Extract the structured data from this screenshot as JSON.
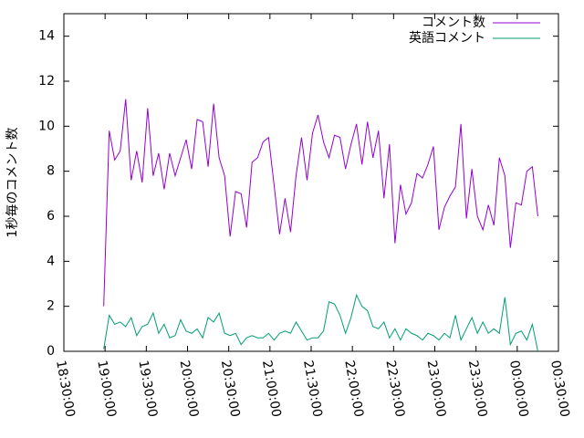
{
  "chart_data": {
    "type": "line",
    "y_label": "1秒毎のコメント数",
    "x": [
      "18:59:00",
      "19:03:00",
      "19:07:00",
      "19:11:00",
      "19:15:00",
      "19:19:00",
      "19:23:00",
      "19:27:00",
      "19:31:00",
      "19:35:00",
      "19:39:00",
      "19:43:00",
      "19:47:00",
      "19:51:00",
      "19:55:00",
      "19:59:00",
      "20:03:00",
      "20:07:00",
      "20:11:00",
      "20:15:00",
      "20:19:00",
      "20:23:00",
      "20:27:00",
      "20:31:00",
      "20:35:00",
      "20:39:00",
      "20:43:00",
      "20:47:00",
      "20:51:00",
      "20:55:00",
      "20:59:00",
      "21:03:00",
      "21:07:00",
      "21:11:00",
      "21:15:00",
      "21:19:00",
      "21:23:00",
      "21:27:00",
      "21:31:00",
      "21:35:00",
      "21:39:00",
      "21:43:00",
      "21:47:00",
      "21:51:00",
      "21:55:00",
      "21:59:00",
      "22:03:00",
      "22:07:00",
      "22:11:00",
      "22:15:00",
      "22:19:00",
      "22:23:00",
      "22:27:00",
      "22:31:00",
      "22:35:00",
      "22:39:00",
      "22:43:00",
      "22:47:00",
      "22:51:00",
      "22:55:00",
      "22:59:00",
      "23:03:00",
      "23:07:00",
      "23:11:00",
      "23:15:00",
      "23:19:00",
      "23:23:00",
      "23:27:00",
      "23:31:00",
      "23:35:00",
      "23:39:00",
      "23:43:00",
      "23:47:00",
      "23:51:00",
      "23:55:00",
      "23:59:00",
      "00:03:00",
      "00:07:00",
      "00:11:00",
      "00:15:00"
    ],
    "series": [
      {
        "name": "コメント数",
        "color": "#9400d3",
        "values": [
          2.0,
          9.8,
          8.5,
          8.9,
          11.2,
          7.6,
          8.9,
          7.5,
          10.8,
          7.8,
          8.8,
          7.2,
          8.8,
          7.8,
          8.6,
          9.4,
          8.1,
          10.3,
          10.2,
          8.2,
          11.0,
          8.6,
          7.8,
          5.1,
          7.1,
          7.0,
          5.5,
          8.4,
          8.6,
          9.3,
          9.5,
          7.4,
          5.2,
          6.8,
          5.3,
          7.8,
          9.5,
          7.6,
          9.7,
          10.5,
          9.3,
          8.6,
          9.6,
          9.5,
          8.1,
          9.2,
          10.1,
          8.3,
          10.2,
          8.6,
          9.8,
          6.8,
          9.2,
          4.8,
          7.4,
          6.1,
          6.6,
          7.9,
          7.7,
          8.3,
          9.1,
          5.4,
          6.4,
          6.9,
          7.3,
          10.1,
          5.9,
          8.1,
          6.0,
          5.4,
          6.5,
          5.6,
          8.6,
          7.8,
          4.6,
          6.6,
          6.5,
          8.0,
          8.2,
          6.0
        ]
      },
      {
        "name": "英語コメント",
        "color": "#009e73",
        "values": [
          0.1,
          1.6,
          1.2,
          1.3,
          1.1,
          1.5,
          0.7,
          1.1,
          1.2,
          1.7,
          0.8,
          1.2,
          0.6,
          0.7,
          1.4,
          0.9,
          0.8,
          1.0,
          0.6,
          1.5,
          1.3,
          1.7,
          0.8,
          0.7,
          0.8,
          0.3,
          0.6,
          0.7,
          0.6,
          0.6,
          0.8,
          0.5,
          0.8,
          0.9,
          0.8,
          1.3,
          0.9,
          0.5,
          0.6,
          0.6,
          0.9,
          2.2,
          2.1,
          1.6,
          0.8,
          1.5,
          2.5,
          2.0,
          1.8,
          1.1,
          1.0,
          1.3,
          0.6,
          1.0,
          0.5,
          1.0,
          0.8,
          0.7,
          0.5,
          0.8,
          0.7,
          0.5,
          0.8,
          0.6,
          1.6,
          0.5,
          1.0,
          1.5,
          0.8,
          1.3,
          0.8,
          1.0,
          0.8,
          2.4,
          0.3,
          0.8,
          0.9,
          0.5,
          1.2,
          0.0
        ]
      }
    ],
    "xlim": [
      "18:30:00",
      "00:30:00"
    ],
    "xticks": [
      "18:30:00",
      "19:00:00",
      "19:30:00",
      "20:00:00",
      "20:30:00",
      "21:00:00",
      "21:30:00",
      "22:00:00",
      "22:30:00",
      "23:00:00",
      "23:30:00",
      "00:00:00",
      "00:30:00"
    ],
    "ylim": [
      0,
      15
    ],
    "yticks": [
      0,
      2,
      4,
      6,
      8,
      10,
      12,
      14
    ],
    "legend": "top-right"
  }
}
